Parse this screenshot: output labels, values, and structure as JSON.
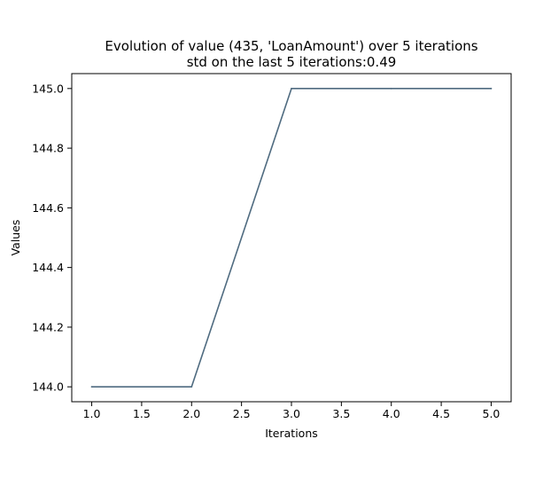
{
  "chart_data": {
    "type": "line",
    "title": "Evolution of value (435, 'LoanAmount') over 5 iterations",
    "subtitle": "std on the last 5 iterations:0.49",
    "xlabel": "Iterations",
    "ylabel": "Values",
    "x": [
      1.0,
      2.0,
      3.0,
      4.0,
      5.0
    ],
    "series": [
      {
        "values": [
          144.0,
          144.0,
          145.0,
          145.0,
          145.0
        ],
        "color": "#4f6b80"
      }
    ],
    "xlim": [
      0.8,
      5.2
    ],
    "ylim": [
      143.95,
      145.05
    ],
    "xticks": [
      1.0,
      1.5,
      2.0,
      2.5,
      3.0,
      3.5,
      4.0,
      4.5,
      5.0
    ],
    "xtick_labels": [
      "1.0",
      "1.5",
      "2.0",
      "2.5",
      "3.0",
      "3.5",
      "4.0",
      "4.5",
      "5.0"
    ],
    "yticks": [
      144.0,
      144.2,
      144.4,
      144.6,
      144.8,
      145.0
    ],
    "ytick_labels": [
      "144.0",
      "144.2",
      "144.4",
      "144.6",
      "144.8",
      "145.0"
    ],
    "grid": false,
    "legend": "none"
  }
}
